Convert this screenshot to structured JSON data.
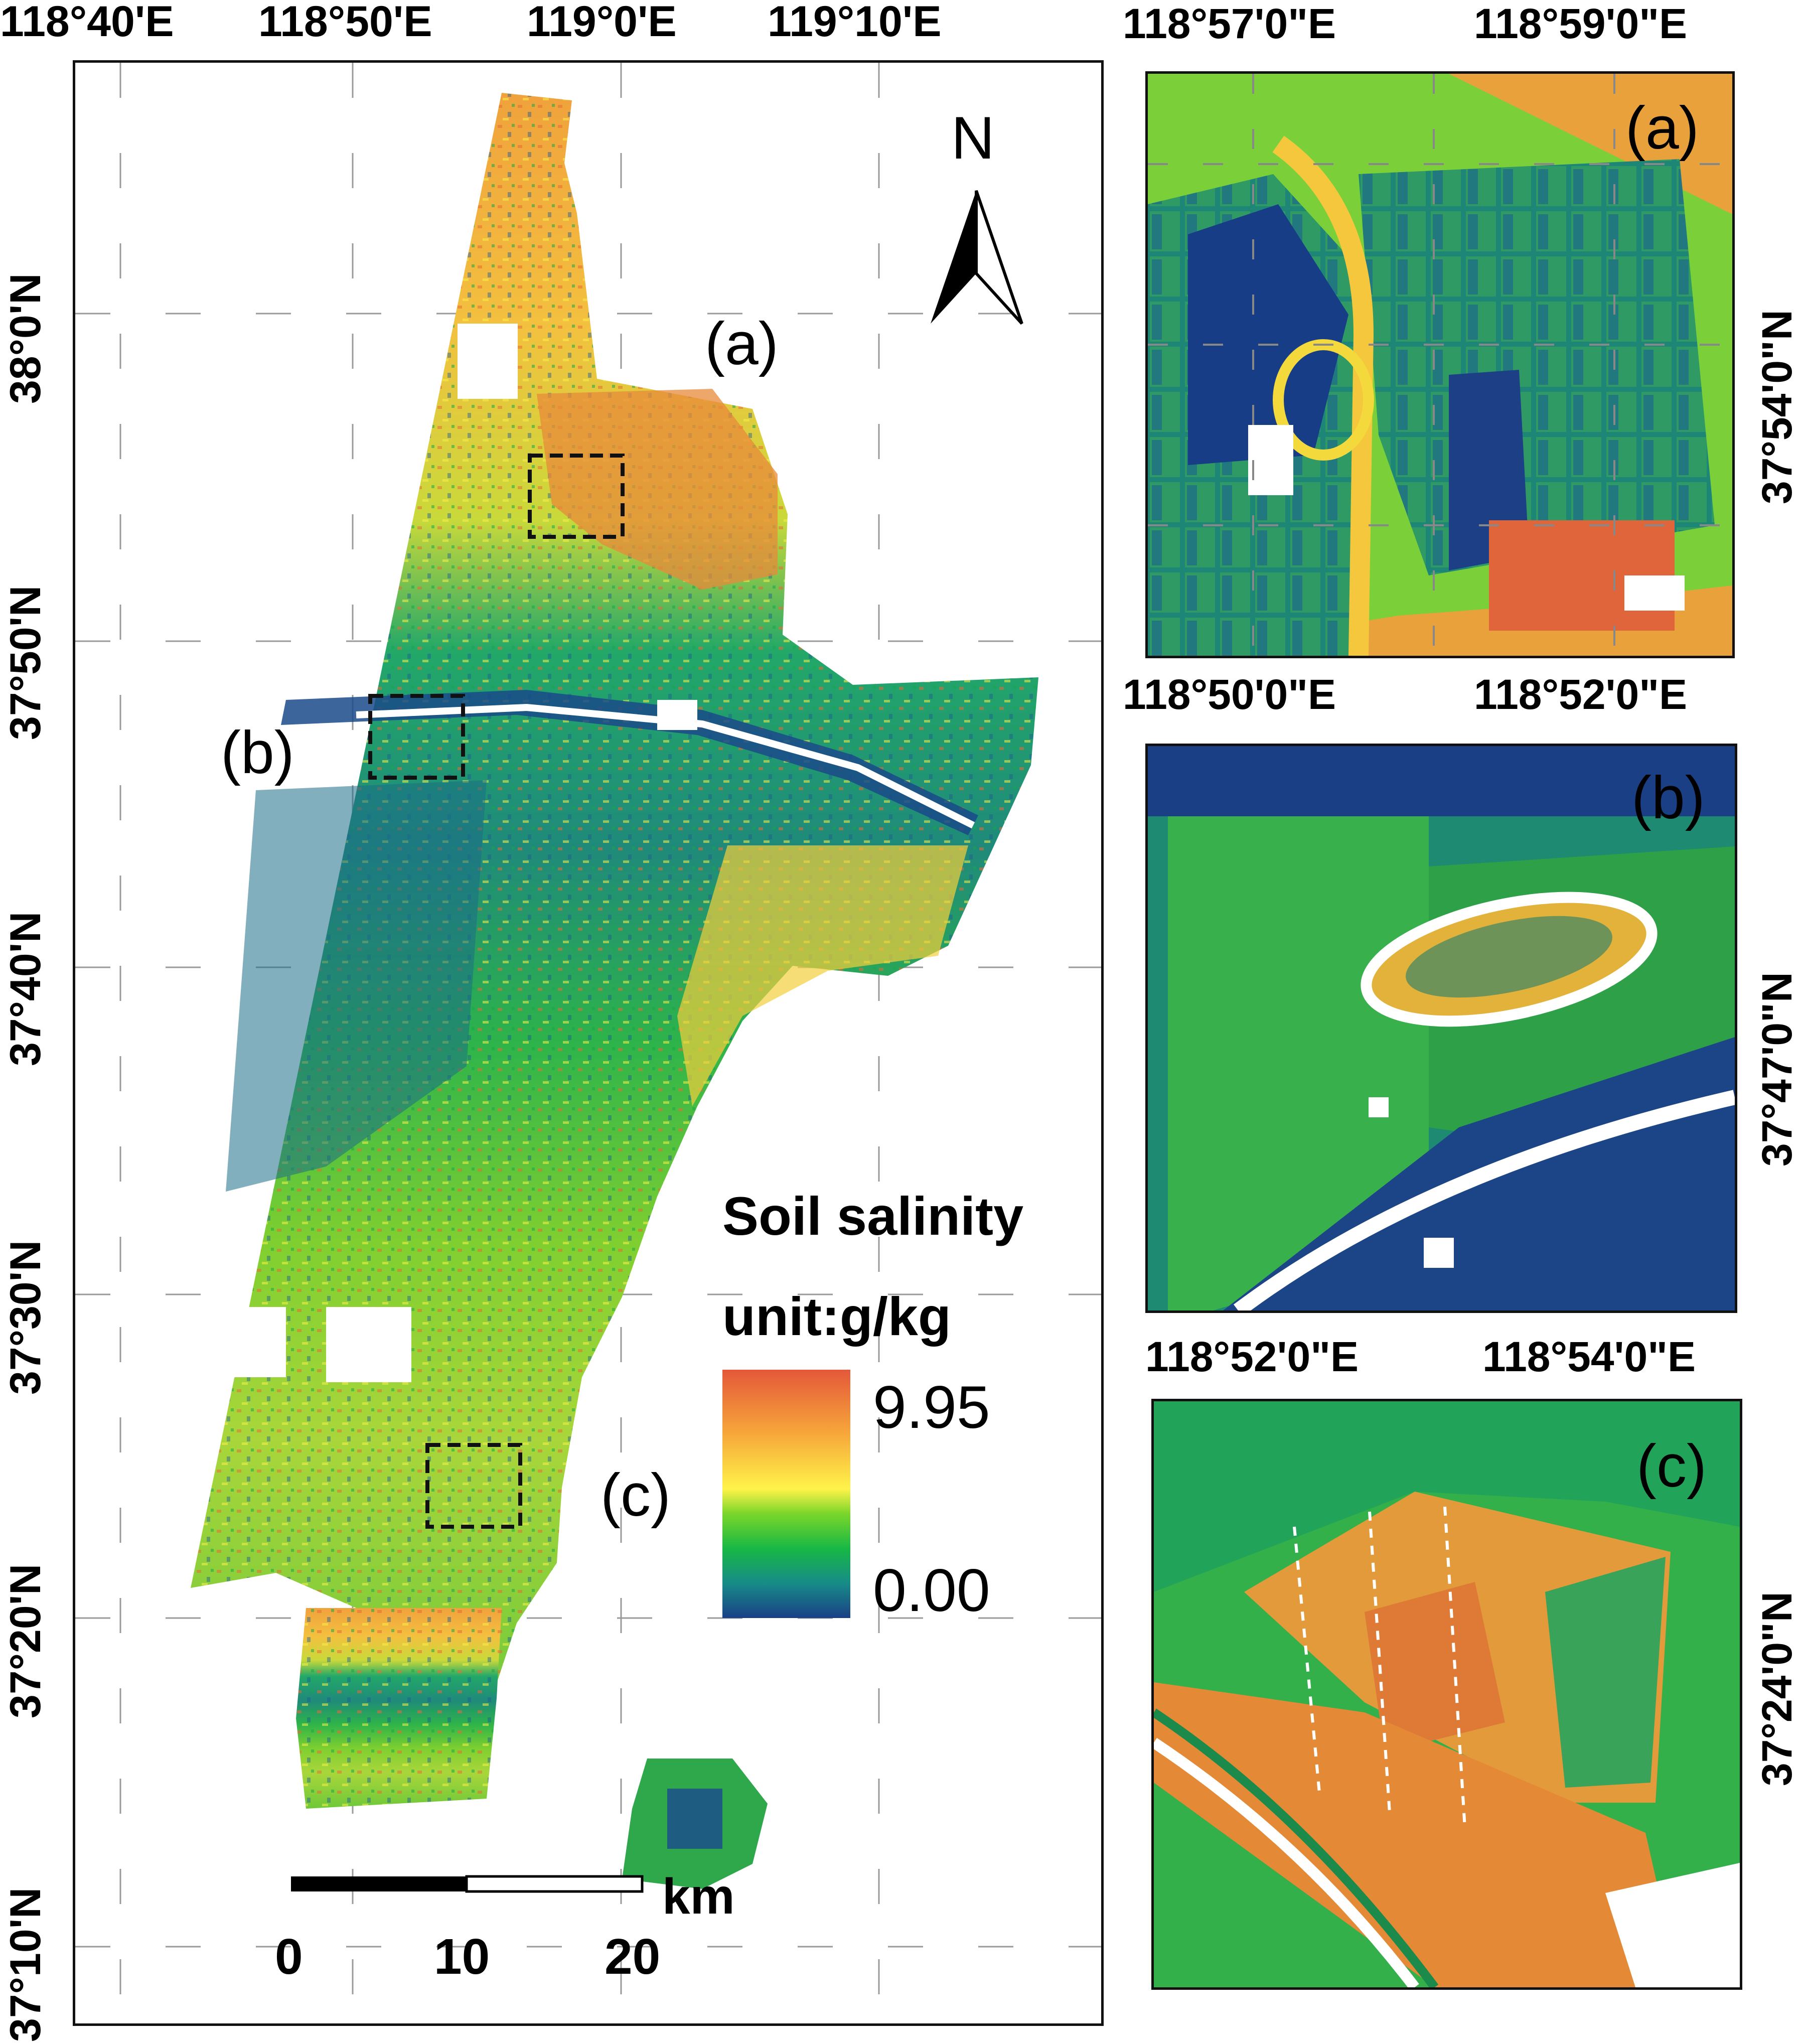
{
  "main_map": {
    "top_lon_labels": [
      "118°40'E",
      "118°50'E",
      "119°0'E",
      "119°10'E"
    ],
    "left_lat_labels": [
      "38°0'N",
      "37°50'N",
      "37°40'N",
      "37°30'N",
      "37°20'N",
      "37°10'N"
    ],
    "north_label": "N",
    "box_labels": [
      "(a)",
      "(b)",
      "(c)"
    ],
    "legend": {
      "title": "Soil salinity",
      "unit": "unit:g/kg",
      "max": "9.95",
      "min": "0.00",
      "colors": [
        "#e4583a",
        "#f6a53a",
        "#fff34a",
        "#7ad62a",
        "#17b844",
        "#178c88",
        "#1a3f86"
      ]
    },
    "scalebar": {
      "unit": "km",
      "ticks": [
        "0",
        "10",
        "20"
      ]
    }
  },
  "insets": [
    {
      "id": "a",
      "label": "(a)",
      "lon_labels": [
        "118°57'0\"E",
        "118°59'0\"E"
      ],
      "lat_label": "37°54'0\"N"
    },
    {
      "id": "b",
      "label": "(b)",
      "lon_labels": [
        "118°50'0\"E",
        "118°52'0\"E"
      ],
      "lat_label": "37°47'0\"N"
    },
    {
      "id": "c",
      "label": "(c)",
      "lon_labels": [
        "118°52'0\"E",
        "118°54'0\"E"
      ],
      "lat_label": "37°24'0\"N"
    }
  ]
}
